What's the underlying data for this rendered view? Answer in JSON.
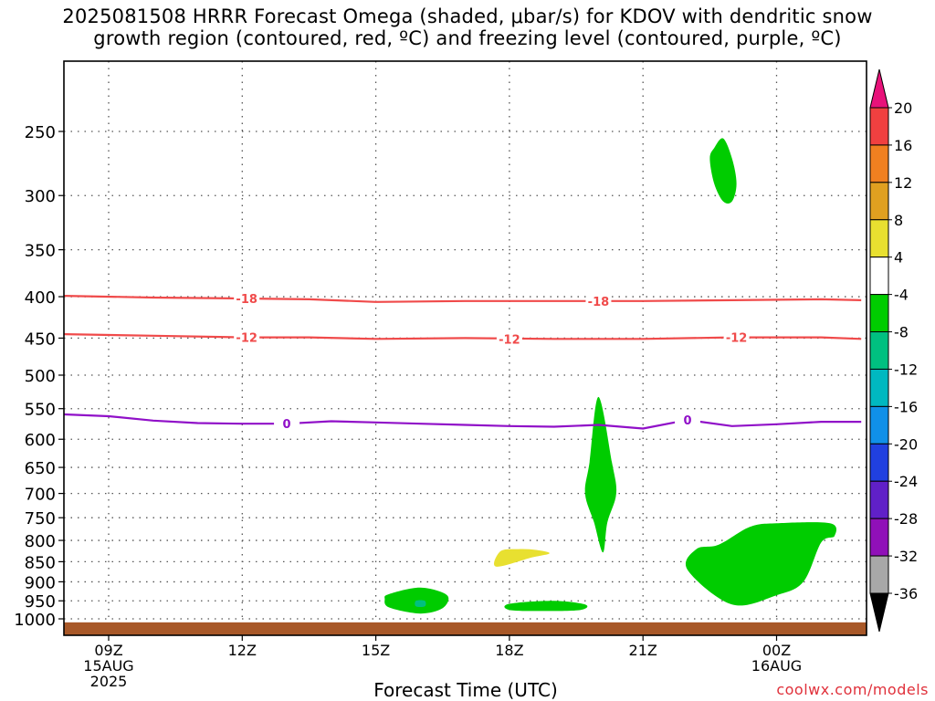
{
  "title": {
    "line1": "2025081508 HRRR Forecast Omega (shaded, μbar/s) for KDOV with dendritic snow",
    "line2": "growth region (contoured, red, ºC) and freezing level (contoured, purple, ºC)"
  },
  "credit": "coolwx.com/models",
  "chart_data": {
    "type": "time-height cross section",
    "xlabel": "Forecast Time (UTC)",
    "ylabel": "",
    "y_scale": "log pressure (inverted)",
    "ylim": [
      1020,
      200
    ],
    "y_ticks": [
      250,
      300,
      350,
      400,
      450,
      500,
      550,
      600,
      650,
      700,
      750,
      800,
      850,
      900,
      950,
      1000
    ],
    "xlim": [
      8.0,
      25.9
    ],
    "x_ticks": [
      {
        "x": 9,
        "lines": [
          "09Z",
          "15AUG",
          "2025"
        ]
      },
      {
        "x": 12,
        "lines": [
          "12Z"
        ]
      },
      {
        "x": 15,
        "lines": [
          "15Z"
        ]
      },
      {
        "x": 18,
        "lines": [
          "18Z"
        ]
      },
      {
        "x": 21,
        "lines": [
          "21Z"
        ]
      },
      {
        "x": 24,
        "lines": [
          "00Z",
          "16AUG"
        ]
      }
    ],
    "grid": true,
    "colorbar": {
      "labels": [
        20,
        16,
        12,
        8,
        4,
        -4,
        -8,
        -12,
        -16,
        -20,
        -24,
        -28,
        -32,
        -36
      ],
      "colors": [
        "#e8127a",
        "#f04040",
        "#f08020",
        "#e0a020",
        "#e8e030",
        "#ffffff",
        "#00cc00",
        "#00c080",
        "#00b8c0",
        "#1090e8",
        "#2040e0",
        "#6020c8",
        "#9010b8",
        "#a8a8a8",
        "#000000"
      ]
    },
    "contours": [
      {
        "name": "-18",
        "color": "#f04a4a",
        "x": [
          8.0,
          10.0,
          12.0,
          13.5,
          15.0,
          17.0,
          19.0,
          21.0,
          23.0,
          25.0,
          25.9
        ],
        "p": [
          399,
          401,
          402,
          403,
          406,
          405,
          405,
          405,
          404,
          403,
          404
        ],
        "labels": [
          [
            12.1,
            402
          ],
          [
            20.0,
            405
          ]
        ]
      },
      {
        "name": "-12",
        "color": "#f04a4a",
        "x": [
          8.0,
          10.0,
          12.0,
          13.5,
          15.0,
          17.0,
          19.0,
          21.0,
          23.0,
          25.0,
          25.9
        ],
        "p": [
          445,
          447,
          449,
          449,
          451,
          450,
          451,
          451,
          449,
          449,
          451
        ],
        "labels": [
          [
            12.1,
            449
          ],
          [
            18.0,
            451
          ],
          [
            23.1,
            449
          ]
        ]
      },
      {
        "name": "0",
        "color": "#9010c8",
        "x": [
          8.0,
          9.0,
          10.0,
          11.0,
          12.0,
          13.0,
          14.0,
          15.0,
          16.0,
          17.0,
          18.0,
          19.0,
          20.0,
          21.0,
          22.0,
          23.0,
          24.0,
          25.0,
          25.9
        ],
        "p": [
          559,
          562,
          569,
          573,
          574,
          574,
          570,
          572,
          574,
          576,
          578,
          579,
          576,
          582,
          568,
          578,
          575,
          571,
          571
        ],
        "labels": [
          [
            13.0,
            574
          ],
          [
            22.0,
            568
          ]
        ]
      }
    ],
    "omega_regions": [
      {
        "value": -6,
        "color": "#00cc00",
        "x": [
          22.8,
          23.0,
          23.1,
          23.0,
          22.8,
          22.6,
          22.5,
          22.6
        ],
        "p": [
          255,
          270,
          290,
          305,
          305,
          290,
          270,
          262
        ]
      },
      {
        "value": -6,
        "color": "#00cc00",
        "x": [
          20.0,
          20.3,
          20.4,
          20.2,
          20.1,
          19.9,
          19.7,
          19.8
        ],
        "p": [
          532,
          640,
          700,
          760,
          828,
          760,
          700,
          640
        ]
      },
      {
        "value": -6,
        "color": "#00cc00",
        "x": [
          22.7,
          23.4,
          24.0,
          25.2,
          25.3,
          25.0,
          24.6,
          24.0,
          23.0,
          22.0,
          22.2
        ],
        "p": [
          810,
          770,
          762,
          762,
          790,
          805,
          900,
          935,
          960,
          870,
          820
        ]
      },
      {
        "value": -6,
        "color": "#00cc00",
        "x": [
          15.3,
          16.0,
          16.6,
          16.5,
          16.0,
          15.3,
          15.2
        ],
        "p": [
          932,
          915,
          935,
          970,
          985,
          968,
          945
        ]
      },
      {
        "value": -10,
        "color": "#00c080",
        "x": [
          15.9,
          16.1,
          16.1,
          15.9
        ],
        "p": [
          950,
          950,
          965,
          965
        ]
      },
      {
        "value": -6,
        "color": "#00cc00",
        "x": [
          18.0,
          19.0,
          19.7,
          19.6,
          18.8,
          18.0
        ],
        "p": [
          958,
          950,
          960,
          975,
          978,
          975
        ]
      },
      {
        "value": 6,
        "color": "#e8e030",
        "x": [
          17.8,
          18.2,
          18.6,
          18.9,
          18.5,
          17.7
        ],
        "p": [
          825,
          820,
          822,
          830,
          840,
          862
        ]
      }
    ],
    "terrain": {
      "color": "#a85828",
      "top_pressure": 1010,
      "label": ""
    }
  }
}
